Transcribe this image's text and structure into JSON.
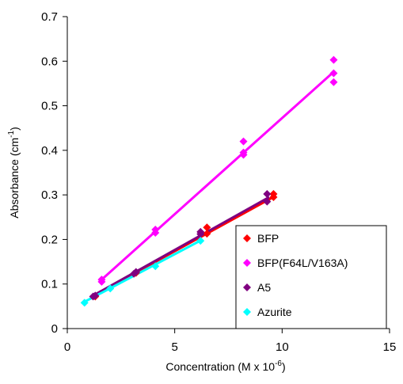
{
  "chart_data": {
    "type": "scatter",
    "xlabel": "Concentration (M x 10",
    "xlabel_sup": "-6",
    "xlabel_end": ")",
    "ylabel": "Absorbance (cm",
    "ylabel_sup": "-1",
    "ylabel_end": ")",
    "xlim": [
      0,
      15
    ],
    "ylim": [
      0,
      0.7
    ],
    "x_ticks": [
      "0",
      "5",
      "10",
      "15"
    ],
    "y_ticks": [
      "0",
      "0.1",
      "0.2",
      "0.3",
      "0.4",
      "0.5",
      "0.6",
      "0.7"
    ],
    "grid": false,
    "legend_position": "bottom-right",
    "series": [
      {
        "name": "BFP",
        "color": "#ff0000",
        "x": [
          1.3,
          3.2,
          6.5,
          6.5,
          9.6,
          9.6
        ],
        "y": [
          0.072,
          0.125,
          0.213,
          0.227,
          0.295,
          0.302
        ],
        "fit": [
          [
            1.2,
            0.073
          ],
          [
            9.7,
            0.298
          ]
        ]
      },
      {
        "name": "BFP(F64L/V163A)",
        "color": "#ff00ff",
        "x": [
          1.6,
          1.6,
          4.1,
          4.1,
          8.2,
          8.2,
          8.2,
          12.4,
          12.4,
          12.4
        ],
        "y": [
          0.105,
          0.11,
          0.215,
          0.222,
          0.39,
          0.395,
          0.42,
          0.553,
          0.573,
          0.603
        ],
        "fit": [
          [
            1.6,
            0.11
          ],
          [
            12.4,
            0.576
          ]
        ]
      },
      {
        "name": "A5",
        "color": "#800080",
        "x": [
          1.2,
          1.3,
          3.1,
          3.2,
          6.2,
          6.2,
          9.3,
          9.3
        ],
        "y": [
          0.072,
          0.074,
          0.123,
          0.127,
          0.212,
          0.217,
          0.285,
          0.302
        ],
        "fit": [
          [
            1.2,
            0.074
          ],
          [
            9.4,
            0.295
          ]
        ]
      },
      {
        "name": "Azurite",
        "color": "#00ffff",
        "x": [
          0.8,
          2.0,
          4.1,
          6.2
        ],
        "y": [
          0.058,
          0.09,
          0.14,
          0.197
        ],
        "fit": [
          [
            0.8,
            0.06
          ],
          [
            6.3,
            0.2
          ]
        ]
      }
    ]
  }
}
